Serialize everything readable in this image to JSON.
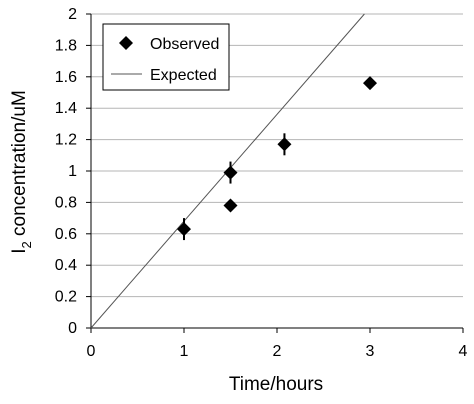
{
  "chart_data": {
    "type": "scatter",
    "xlabel": "Time/hours",
    "ylabel": {
      "base": "I",
      "subscript": "2",
      "rest": " concentration/uM"
    },
    "xlim": [
      0,
      4
    ],
    "ylim": [
      0,
      2
    ],
    "x_ticks": [
      "0",
      "1",
      "2",
      "3",
      "4"
    ],
    "y_ticks": [
      "0",
      "0.2",
      "0.4",
      "0.6",
      "0.8",
      "1",
      "1.2",
      "1.4",
      "1.6",
      "1.8",
      "2"
    ],
    "grid": "horizontal",
    "legend_position": "top-left",
    "series": [
      {
        "name": "Observed",
        "marker": "diamond",
        "color": "#000000",
        "points": [
          {
            "x": 1.0,
            "y": 0.63,
            "err": 0.07
          },
          {
            "x": 1.5,
            "y": 0.99,
            "err": 0.07
          },
          {
            "x": 1.5,
            "y": 0.78,
            "err": 0.0
          },
          {
            "x": 2.08,
            "y": 1.17,
            "err": 0.07
          },
          {
            "x": 3.0,
            "y": 1.56,
            "err": 0.0
          }
        ]
      },
      {
        "name": "Expected",
        "marker": "line",
        "color": "#000000",
        "line": [
          {
            "x": 0,
            "y": 0
          },
          {
            "x": 2.94,
            "y": 2.0
          }
        ]
      }
    ]
  }
}
